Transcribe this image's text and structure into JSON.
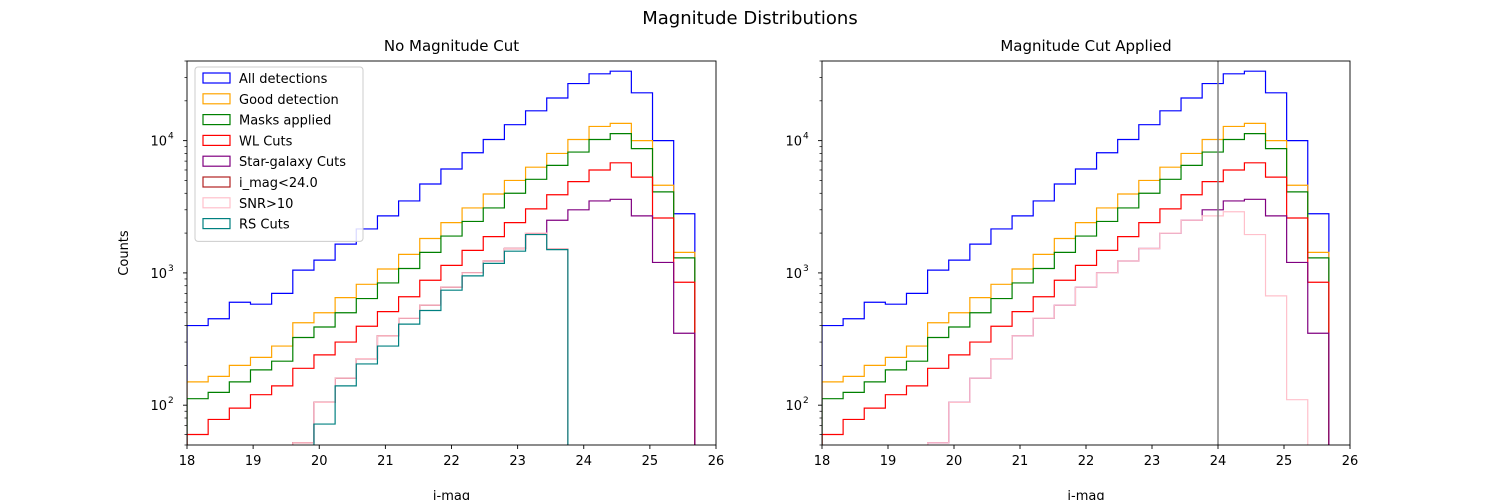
{
  "figure": {
    "title": "Magnitude Distributions"
  },
  "chart_data": [
    {
      "type": "line",
      "title": "No Magnitude Cut",
      "xlabel": "i-mag",
      "ylabel": "Counts",
      "xlim": [
        18,
        26
      ],
      "ylim": [
        50,
        40000
      ],
      "yscale": "log",
      "xticks": [
        18,
        19,
        20,
        21,
        22,
        23,
        24,
        25,
        26
      ],
      "yticks": [
        {
          "value": 100,
          "base": "10",
          "exp": "2"
        },
        {
          "value": 1000,
          "base": "10",
          "exp": "3"
        },
        {
          "value": 10000,
          "base": "10",
          "exp": "4"
        }
      ],
      "grid": false,
      "legend": "upper-left",
      "bin_edges": [
        18,
        18.32,
        18.64,
        18.96,
        19.28,
        19.6,
        19.92,
        20.24,
        20.56,
        20.88,
        21.2,
        21.52,
        21.84,
        22.16,
        22.48,
        22.8,
        23.12,
        23.44,
        23.76,
        24.08,
        24.4,
        24.72,
        25.04,
        25.36,
        25.68,
        26
      ],
      "series": [
        {
          "name": "All detections",
          "color": "#0000ff",
          "values": [
            400,
            450,
            600,
            580,
            700,
            1050,
            1250,
            1650,
            2150,
            2700,
            3500,
            4700,
            6100,
            8100,
            10200,
            13200,
            16800,
            21000,
            27000,
            32000,
            33500,
            23000,
            10000,
            2800,
            0
          ]
        },
        {
          "name": "Good detection",
          "color": "#ffa500",
          "values": [
            150,
            165,
            200,
            230,
            280,
            420,
            500,
            650,
            820,
            1070,
            1380,
            1820,
            2400,
            3100,
            3950,
            5000,
            6300,
            8000,
            10200,
            12800,
            13500,
            10000,
            4600,
            1430,
            0
          ]
        },
        {
          "name": "Masks applied",
          "color": "#008000",
          "values": [
            112,
            125,
            150,
            185,
            215,
            325,
            390,
            500,
            640,
            840,
            1080,
            1430,
            1900,
            2450,
            3100,
            4000,
            5100,
            6500,
            8200,
            10200,
            11300,
            8700,
            4100,
            1300,
            0
          ]
        },
        {
          "name": "WL Cuts",
          "color": "#ff0000",
          "values": [
            60,
            78,
            95,
            120,
            140,
            190,
            240,
            300,
            395,
            510,
            660,
            880,
            1140,
            1480,
            1880,
            2400,
            3050,
            3900,
            4900,
            6000,
            6800,
            5300,
            2600,
            850,
            0
          ]
        },
        {
          "name": "Star-galaxy Cuts",
          "color": "#800080",
          "values": [
            0,
            0,
            0,
            0,
            0,
            52,
            105,
            160,
            225,
            335,
            455,
            570,
            780,
            1000,
            1230,
            1530,
            2000,
            2500,
            3000,
            3500,
            3600,
            2700,
            1200,
            350,
            0
          ]
        },
        {
          "name": "i_mag<24.0",
          "color": "#b22222",
          "values": [
            0,
            0,
            0,
            0,
            0,
            52,
            105,
            160,
            225,
            335,
            455,
            570,
            780,
            1000,
            1230,
            1530,
            2000,
            1520,
            0,
            0,
            0,
            0,
            0,
            0,
            0
          ]
        },
        {
          "name": "SNR>10",
          "color": "#ffc0cb",
          "values": [
            0,
            0,
            0,
            0,
            0,
            52,
            105,
            160,
            225,
            335,
            455,
            570,
            780,
            1000,
            1230,
            1530,
            2000,
            1520,
            0,
            0,
            0,
            0,
            0,
            0,
            0
          ]
        },
        {
          "name": "RS Cuts",
          "color": "#008080",
          "values": [
            0,
            0,
            0,
            0,
            0,
            0,
            72,
            140,
            205,
            280,
            410,
            520,
            740,
            950,
            1180,
            1460,
            1950,
            1500,
            0,
            0,
            0,
            0,
            0,
            0,
            0
          ]
        }
      ]
    },
    {
      "type": "line",
      "title": "Magnitude Cut Applied",
      "xlabel": "i-mag",
      "ylabel": "",
      "xlim": [
        18,
        26
      ],
      "ylim": [
        50,
        40000
      ],
      "yscale": "log",
      "xticks": [
        18,
        19,
        20,
        21,
        22,
        23,
        24,
        25,
        26
      ],
      "yticks": [
        {
          "value": 100,
          "base": "10",
          "exp": "2"
        },
        {
          "value": 1000,
          "base": "10",
          "exp": "3"
        },
        {
          "value": 10000,
          "base": "10",
          "exp": "4"
        }
      ],
      "grid": false,
      "vline": {
        "x": 24,
        "color": "#808080"
      },
      "bin_edges": [
        18,
        18.32,
        18.64,
        18.96,
        19.28,
        19.6,
        19.92,
        20.24,
        20.56,
        20.88,
        21.2,
        21.52,
        21.84,
        22.16,
        22.48,
        22.8,
        23.12,
        23.44,
        23.76,
        24.08,
        24.4,
        24.72,
        25.04,
        25.36,
        25.68,
        26
      ],
      "series": [
        {
          "color": "#0000ff",
          "values": [
            400,
            450,
            600,
            580,
            700,
            1050,
            1250,
            1650,
            2150,
            2700,
            3500,
            4700,
            6100,
            8100,
            10200,
            13200,
            16800,
            21000,
            27000,
            32000,
            33500,
            23000,
            10000,
            2800,
            0
          ]
        },
        {
          "color": "#ffa500",
          "values": [
            150,
            165,
            200,
            230,
            280,
            420,
            500,
            650,
            820,
            1070,
            1380,
            1820,
            2400,
            3100,
            3950,
            5000,
            6300,
            8000,
            10200,
            12800,
            13500,
            10000,
            4600,
            1430,
            0
          ]
        },
        {
          "color": "#008000",
          "values": [
            112,
            125,
            150,
            185,
            215,
            325,
            390,
            500,
            640,
            840,
            1080,
            1430,
            1900,
            2450,
            3100,
            4000,
            5100,
            6500,
            8200,
            10200,
            11300,
            8700,
            4100,
            1300,
            0
          ]
        },
        {
          "color": "#ff0000",
          "values": [
            60,
            78,
            95,
            120,
            140,
            190,
            240,
            300,
            395,
            510,
            660,
            880,
            1140,
            1480,
            1880,
            2400,
            3050,
            3900,
            4900,
            6000,
            6800,
            5300,
            2600,
            850,
            0
          ]
        },
        {
          "color": "#800080",
          "values": [
            0,
            0,
            0,
            0,
            0,
            52,
            105,
            160,
            225,
            335,
            455,
            570,
            780,
            1000,
            1230,
            1530,
            2000,
            2500,
            3000,
            3500,
            3600,
            2700,
            1200,
            350,
            0
          ]
        },
        {
          "color": "#ffc0cb",
          "values": [
            0,
            0,
            0,
            0,
            0,
            52,
            105,
            160,
            225,
            335,
            455,
            570,
            780,
            1000,
            1230,
            1530,
            2000,
            2500,
            2700,
            2900,
            1950,
            670,
            110,
            0,
            0
          ]
        }
      ]
    }
  ]
}
